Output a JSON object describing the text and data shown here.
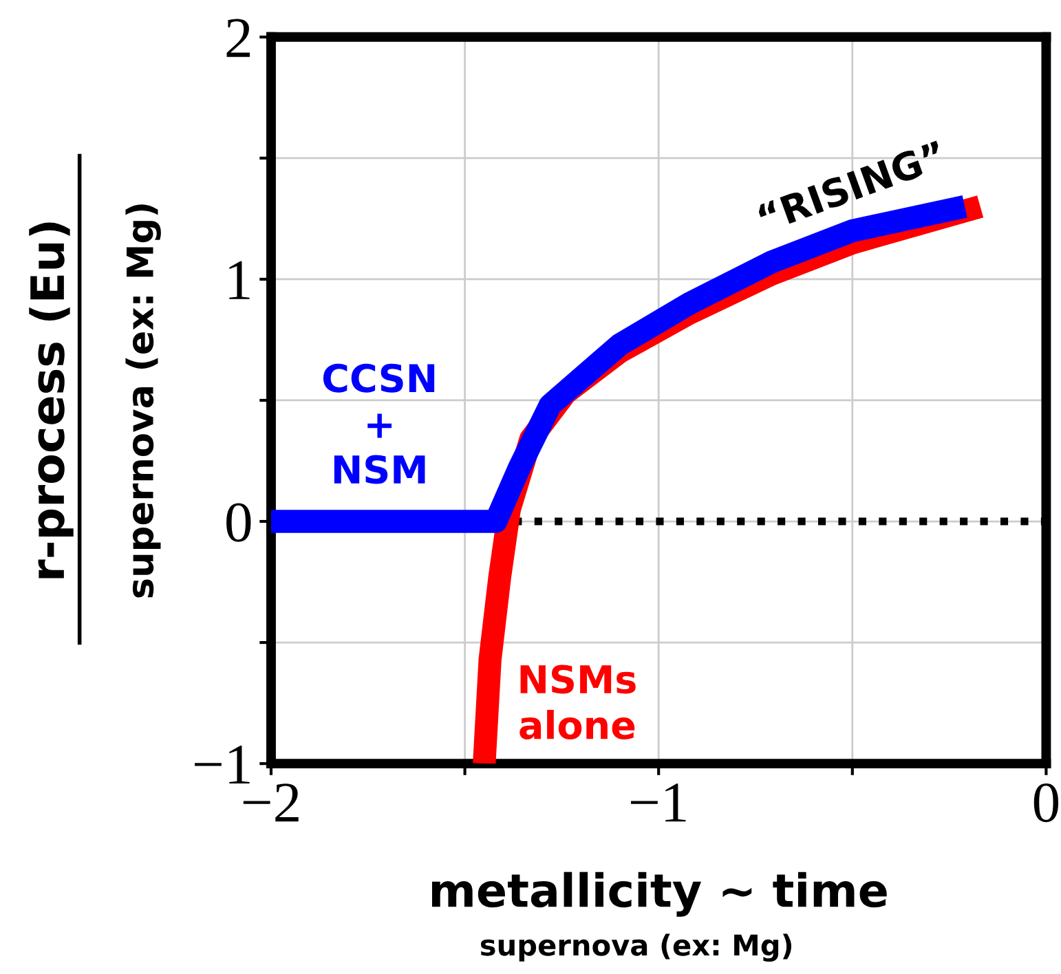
{
  "chart_data": {
    "type": "line",
    "xlabel": "metallicity ~ time",
    "ylabel": "r-process (Eu)",
    "xlim": [
      -2,
      0
    ],
    "ylim": [
      -1,
      2
    ],
    "xticks": [
      -2,
      {
        "value": -1.5,
        "label": null
      },
      -1,
      {
        "value": -0.5,
        "label": null
      },
      0
    ],
    "yticks": [
      -1,
      {
        "value": -0.5,
        "label": null
      },
      0,
      {
        "value": 0.5,
        "label": null
      },
      1,
      {
        "value": 1.5,
        "label": null
      },
      2
    ],
    "grid": true,
    "legend": false,
    "line_style": "solid",
    "marker": "none",
    "series": [
      {
        "color": "#ff0000",
        "x": [
          -1.45,
          -1.435,
          -1.41,
          -1.385,
          -1.33,
          -1.24,
          -1.1,
          -0.92,
          -0.71,
          -0.5,
          -0.17
        ],
        "values": [
          -1,
          -0.57,
          -0.23,
          0.05,
          0.34,
          0.53,
          0.7,
          0.86,
          1.02,
          1.15,
          1.3
        ]
      },
      {
        "color": "#0000ff",
        "x": [
          -2,
          -1.42,
          -1.36,
          -1.28,
          -1.1,
          -0.92,
          -0.71,
          -0.5,
          -0.21
        ],
        "values": [
          0,
          0,
          0.22,
          0.48,
          0.73,
          0.9,
          1.07,
          1.2,
          1.3
        ]
      }
    ],
    "ref_lines": [
      {
        "axis": "y",
        "value": 0,
        "line_style": "dotted",
        "color": "#000000"
      }
    ],
    "annotations": [
      "CCSN\n+\nNSM",
      "NSMs\nalone",
      "“RISING”",
      "supernova (ex: Mg)",
      "supernova (ex: Mg)"
    ]
  }
}
